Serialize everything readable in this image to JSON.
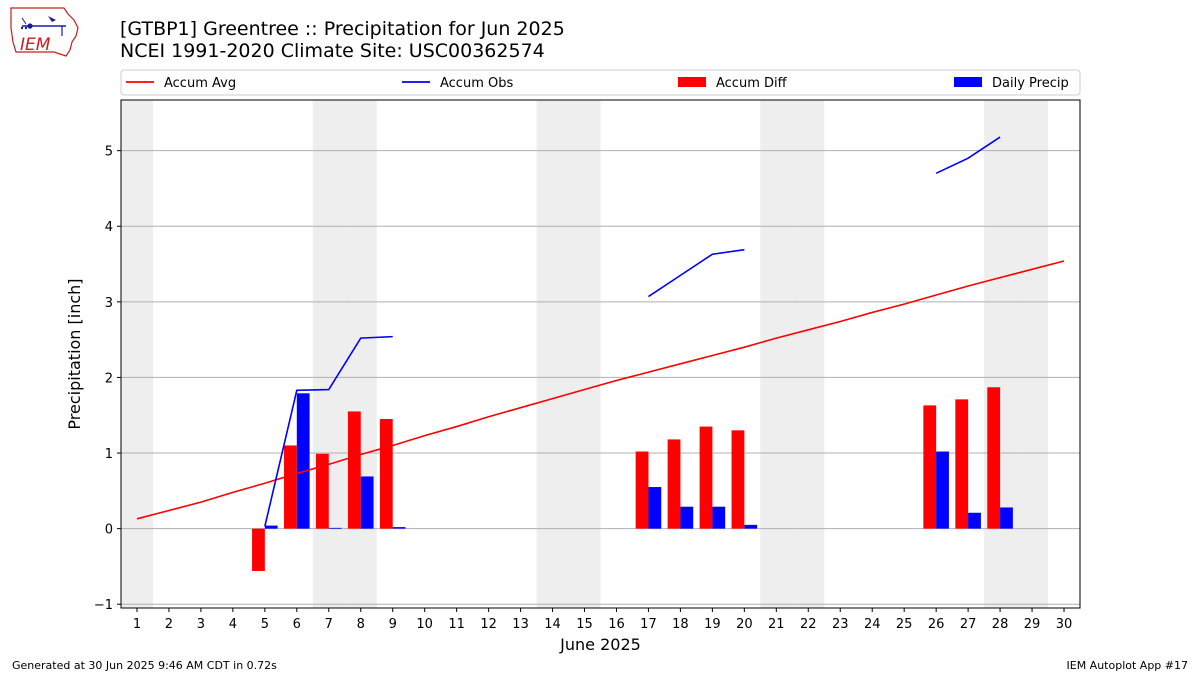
{
  "header": {
    "title_line1": "[GTBP1] Greentree :: Precipitation for Jun 2025",
    "title_line2": "NCEI 1991-2020 Climate Site: USC00362574",
    "logo_text": "IEM"
  },
  "footer": {
    "left": "Generated at 30 Jun 2025 9:46 AM CDT in 0.72s",
    "right": "IEM Autoplot App #17"
  },
  "colors": {
    "avg": "#ff0000",
    "obs": "#0000ff",
    "diff": "#ff0000",
    "daily": "#0000ff",
    "weekend": "#eeeeee",
    "grid": "#b0b0b0"
  },
  "chart_data": {
    "type": "bar",
    "xlabel": "June 2025",
    "ylabel": "Precipitation [inch]",
    "xlim": [
      0.5,
      30.5
    ],
    "ylim": [
      -1.05,
      5.67
    ],
    "yticks": [
      -1,
      0,
      1,
      2,
      3,
      4,
      5
    ],
    "ytick_labels": [
      "−1",
      "0",
      "1",
      "2",
      "3",
      "4",
      "5"
    ],
    "categories": [
      "1",
      "2",
      "3",
      "4",
      "5",
      "6",
      "7",
      "8",
      "9",
      "10",
      "11",
      "12",
      "13",
      "14",
      "15",
      "16",
      "17",
      "18",
      "19",
      "20",
      "21",
      "22",
      "23",
      "24",
      "25",
      "26",
      "27",
      "28",
      "29",
      "30"
    ],
    "shaded_days": [
      1,
      7,
      8,
      14,
      15,
      21,
      22,
      28,
      29
    ],
    "grid": "y",
    "legend_position": "top",
    "legend": [
      {
        "label": "Accum Avg",
        "kind": "line",
        "color": "#ff0000"
      },
      {
        "label": "Accum Obs",
        "kind": "line",
        "color": "#0000ff"
      },
      {
        "label": "Accum Diff",
        "kind": "bar",
        "color": "#ff0000"
      },
      {
        "label": "Daily Precip",
        "kind": "bar",
        "color": "#0000ff"
      }
    ],
    "series": [
      {
        "name": "Accum Avg",
        "type": "line",
        "values": [
          0.13,
          0.24,
          0.35,
          0.48,
          0.6,
          0.73,
          0.85,
          0.98,
          1.1,
          1.23,
          1.35,
          1.48,
          1.6,
          1.72,
          1.84,
          1.96,
          2.07,
          2.18,
          2.29,
          2.4,
          2.52,
          2.63,
          2.74,
          2.86,
          2.97,
          3.09,
          3.21,
          3.32,
          3.43,
          3.54
        ]
      },
      {
        "name": "Accum Obs",
        "type": "line",
        "values": [
          null,
          null,
          null,
          null,
          0.03,
          1.83,
          1.84,
          2.52,
          2.54,
          null,
          null,
          null,
          null,
          null,
          null,
          null,
          3.07,
          3.35,
          3.63,
          3.69,
          null,
          null,
          null,
          null,
          null,
          4.7,
          4.9,
          5.18,
          null,
          null
        ]
      },
      {
        "name": "Accum Diff",
        "type": "bar",
        "values": [
          null,
          null,
          null,
          null,
          -0.56,
          1.1,
          0.99,
          1.55,
          1.45,
          null,
          null,
          null,
          null,
          null,
          null,
          null,
          1.02,
          1.18,
          1.35,
          1.3,
          null,
          null,
          null,
          null,
          null,
          1.63,
          1.71,
          1.87,
          null,
          null
        ]
      },
      {
        "name": "Daily Precip",
        "type": "bar",
        "values": [
          null,
          null,
          null,
          null,
          0.04,
          1.79,
          0.01,
          0.69,
          0.02,
          null,
          null,
          null,
          null,
          null,
          null,
          null,
          0.55,
          0.29,
          0.29,
          0.05,
          null,
          null,
          null,
          null,
          null,
          1.02,
          0.21,
          0.28,
          null,
          null
        ]
      }
    ]
  }
}
